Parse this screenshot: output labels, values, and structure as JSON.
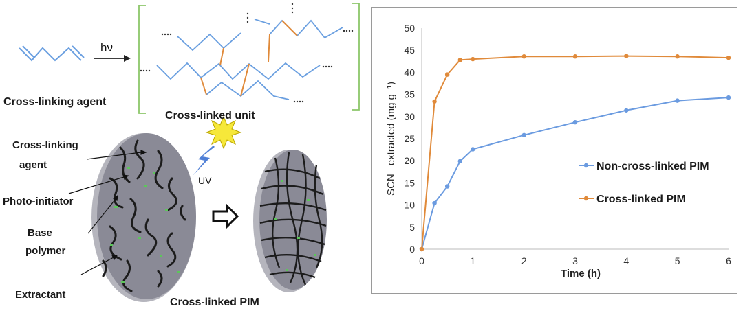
{
  "diagram": {
    "hv_label": "hν",
    "crosslinking_agent_label": "Cross-linking agent",
    "crosslinked_unit_label": "Cross-linked unit",
    "uv_label": "UV",
    "callouts": {
      "crosslinking_agent_1": "Cross-linking",
      "crosslinking_agent_2": "agent",
      "photo_initiator": "Photo-initiator",
      "base_polymer_1": "Base",
      "base_polymer_2": "polymer",
      "extractant": "Extractant"
    },
    "crosslinked_pim_label": "Cross-linked PIM",
    "dots": "....",
    "colors": {
      "chain": "#6a9fe0",
      "crosslink": "#e08a3a",
      "bracket": "#8cc66a"
    }
  },
  "chart_data": {
    "type": "line",
    "xlabel": "Time (h)",
    "ylabel": "SCN⁻ extracted (mg g⁻¹)",
    "xlim": [
      0,
      6
    ],
    "ylim": [
      0,
      50
    ],
    "xticks": [
      0,
      1,
      2,
      3,
      4,
      5,
      6
    ],
    "yticks": [
      0,
      5,
      10,
      15,
      20,
      25,
      30,
      35,
      40,
      45,
      50
    ],
    "grid": false,
    "legend_position": "right",
    "series": [
      {
        "name": "Non-cross-linked PIM",
        "color": "#6b9be0",
        "x": [
          0,
          0.25,
          0.5,
          0.75,
          1,
          2,
          3,
          4,
          5,
          6
        ],
        "y": [
          0,
          10.4,
          14.2,
          19.9,
          22.6,
          25.8,
          28.7,
          31.4,
          33.6,
          34.3
        ]
      },
      {
        "name": "Cross-linked PIM",
        "color": "#e08a3a",
        "x": [
          0,
          0.25,
          0.5,
          0.75,
          1,
          2,
          3,
          4,
          5,
          6
        ],
        "y": [
          0,
          33.4,
          39.5,
          42.8,
          43.0,
          43.6,
          43.6,
          43.7,
          43.6,
          43.3
        ]
      }
    ]
  }
}
